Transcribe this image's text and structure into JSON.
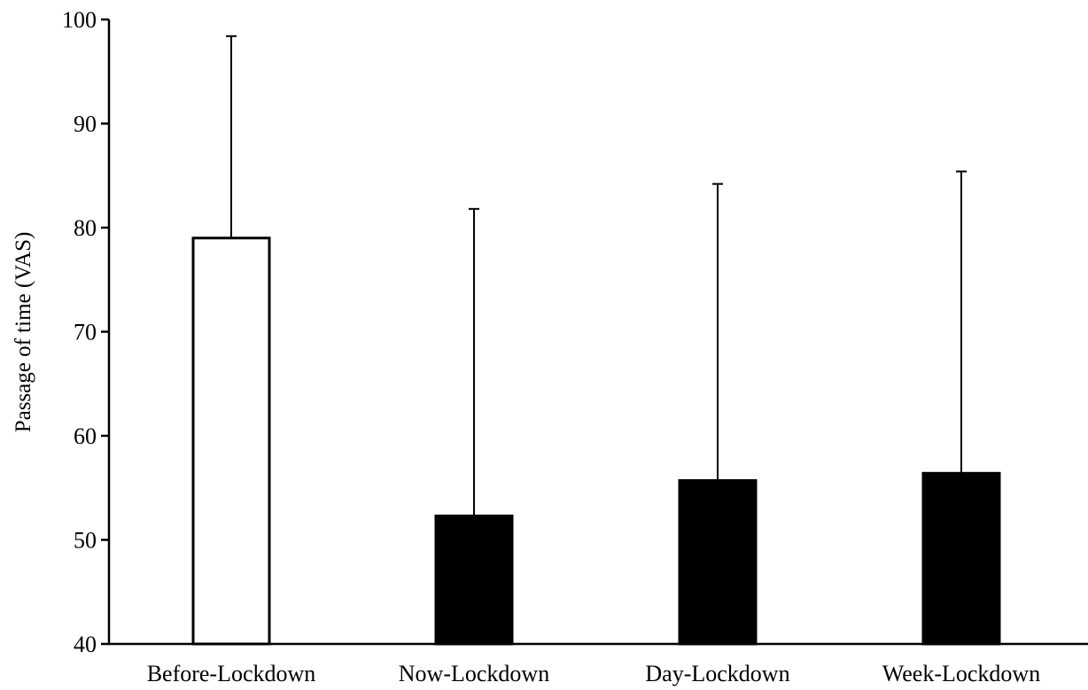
{
  "chart_data": {
    "type": "bar",
    "title": "",
    "xlabel": "",
    "ylabel": "Passage of time (VAS)",
    "ylim": [
      40,
      100
    ],
    "yticks": [
      40,
      50,
      60,
      70,
      80,
      90,
      100
    ],
    "categories": [
      "Before-Lockdown",
      "Now-Lockdown",
      "Day-Lockdown",
      "Week-Lockdown"
    ],
    "values": [
      79,
      52.3,
      55.7,
      56.4
    ],
    "error_upper": [
      98.4,
      81.8,
      84.2,
      85.4
    ],
    "bar_fills": [
      "#ffffff",
      "#000000",
      "#000000",
      "#000000"
    ],
    "grid": false,
    "legend": "none"
  }
}
